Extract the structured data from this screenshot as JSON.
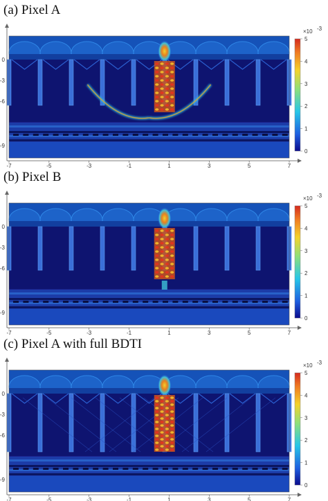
{
  "panels": [
    {
      "title": "(a) Pixel A",
      "x_ticks": [
        "-7",
        "-5",
        "-3",
        "-1",
        "1",
        "3",
        "5",
        "7"
      ],
      "y_ticks": [
        "0",
        "-3",
        "-6",
        "-9"
      ],
      "colorbar": {
        "exponent": "×10",
        "power": "-3",
        "ticks": [
          "5",
          "4",
          "3",
          "2",
          "1",
          "0"
        ]
      },
      "variant": "a"
    },
    {
      "title": "(b) Pixel B",
      "x_ticks": [
        "-7",
        "-5",
        "-3",
        "-1",
        "1",
        "3",
        "5",
        "7"
      ],
      "y_ticks": [
        "0",
        "-3",
        "-6",
        "-9"
      ],
      "colorbar": {
        "exponent": "×10",
        "power": "-3",
        "ticks": [
          "5",
          "4",
          "3",
          "2",
          "1",
          "0"
        ]
      },
      "variant": "b"
    },
    {
      "title": "(c) Pixel A with full BDTI",
      "x_ticks": [
        "-7",
        "-5",
        "-3",
        "-1",
        "1",
        "3",
        "5",
        "7"
      ],
      "y_ticks": [
        "0",
        "-3",
        "-6",
        "-9"
      ],
      "colorbar": {
        "exponent": "×10",
        "power": "-3",
        "ticks": [
          "5",
          "4",
          "3",
          "2",
          "1",
          "0"
        ]
      },
      "variant": "c"
    }
  ],
  "colors": {
    "background": "#1b1f8a",
    "dark": "#0e1470",
    "trench": "#3a6fd8",
    "lens": "#1d63c9",
    "hot": "#e8321e",
    "warm": "#f5c12a"
  }
}
